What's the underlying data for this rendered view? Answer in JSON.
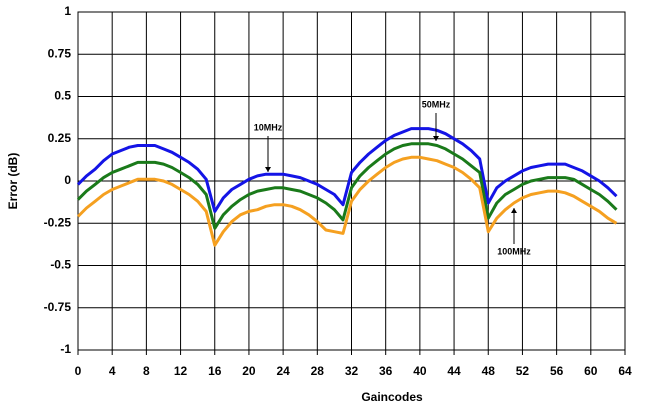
{
  "chart_data": {
    "type": "line",
    "x_label": "Gaincodes",
    "y_label": "Error (dB)",
    "x": [
      0,
      1,
      2,
      3,
      4,
      5,
      6,
      7,
      8,
      9,
      10,
      11,
      12,
      13,
      14,
      15,
      16,
      17,
      18,
      19,
      20,
      21,
      22,
      23,
      24,
      25,
      26,
      27,
      28,
      29,
      30,
      31,
      32,
      33,
      34,
      35,
      36,
      37,
      38,
      39,
      40,
      41,
      42,
      43,
      44,
      45,
      46,
      47,
      48,
      49,
      50,
      51,
      52,
      53,
      54,
      55,
      56,
      57,
      58,
      59,
      60,
      61,
      62,
      63
    ],
    "series": [
      {
        "name": "10MHz",
        "color": "#1414e6",
        "values": [
          -0.02,
          0.03,
          0.07,
          0.12,
          0.16,
          0.18,
          0.2,
          0.21,
          0.21,
          0.21,
          0.19,
          0.17,
          0.14,
          0.11,
          0.07,
          0.01,
          -0.18,
          -0.1,
          -0.05,
          -0.02,
          0.01,
          0.03,
          0.04,
          0.04,
          0.04,
          0.03,
          0.02,
          0,
          -0.02,
          -0.05,
          -0.08,
          -0.14,
          0.05,
          0.11,
          0.16,
          0.2,
          0.24,
          0.27,
          0.29,
          0.31,
          0.31,
          0.31,
          0.3,
          0.28,
          0.25,
          0.22,
          0.18,
          0.13,
          -0.13,
          -0.04,
          0,
          0.03,
          0.06,
          0.08,
          0.09,
          0.1,
          0.1,
          0.1,
          0.08,
          0.06,
          0.03,
          0,
          -0.04,
          -0.09
        ]
      },
      {
        "name": "50MHz",
        "color": "#1a7a1a",
        "values": [
          -0.11,
          -0.06,
          -0.02,
          0.02,
          0.05,
          0.07,
          0.09,
          0.11,
          0.11,
          0.11,
          0.1,
          0.08,
          0.05,
          0.02,
          -0.02,
          -0.08,
          -0.28,
          -0.2,
          -0.15,
          -0.11,
          -0.08,
          -0.06,
          -0.05,
          -0.04,
          -0.04,
          -0.05,
          -0.06,
          -0.08,
          -0.1,
          -0.13,
          -0.17,
          -0.23,
          -0.04,
          0.03,
          0.08,
          0.12,
          0.16,
          0.19,
          0.21,
          0.22,
          0.22,
          0.22,
          0.21,
          0.19,
          0.16,
          0.13,
          0.09,
          0.05,
          -0.22,
          -0.13,
          -0.08,
          -0.05,
          -0.02,
          0,
          0.01,
          0.02,
          0.02,
          0.02,
          0.01,
          -0.02,
          -0.05,
          -0.08,
          -0.12,
          -0.17
        ]
      },
      {
        "name": "100MHz",
        "color": "#f5a020",
        "values": [
          -0.21,
          -0.16,
          -0.12,
          -0.08,
          -0.05,
          -0.03,
          -0.01,
          0.01,
          0.01,
          0.01,
          0,
          -0.02,
          -0.05,
          -0.08,
          -0.12,
          -0.18,
          -0.38,
          -0.3,
          -0.24,
          -0.2,
          -0.18,
          -0.17,
          -0.15,
          -0.14,
          -0.14,
          -0.15,
          -0.17,
          -0.2,
          -0.24,
          -0.29,
          -0.3,
          -0.31,
          -0.12,
          -0.05,
          0,
          0.04,
          0.08,
          0.11,
          0.13,
          0.14,
          0.14,
          0.13,
          0.12,
          0.1,
          0.08,
          0.05,
          0.01,
          -0.04,
          -0.3,
          -0.22,
          -0.17,
          -0.13,
          -0.1,
          -0.08,
          -0.07,
          -0.06,
          -0.06,
          -0.07,
          -0.09,
          -0.12,
          -0.15,
          -0.18,
          -0.22,
          -0.25
        ]
      }
    ],
    "xlim": [
      0,
      64
    ],
    "xticks": [
      0,
      4,
      8,
      12,
      16,
      20,
      24,
      28,
      32,
      36,
      40,
      44,
      48,
      52,
      56,
      60,
      64
    ],
    "ylim": [
      -1,
      1
    ],
    "yticks": [
      1,
      0.75,
      0.5,
      0.25,
      0,
      -0.25,
      -0.5,
      -0.75,
      -1
    ],
    "grid": true
  }
}
